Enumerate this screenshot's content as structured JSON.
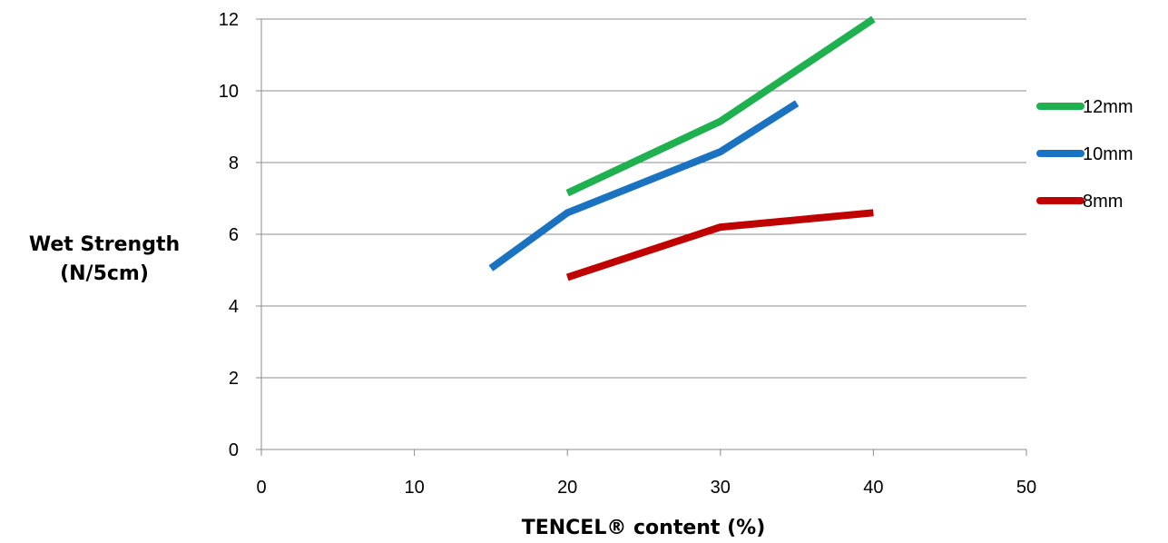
{
  "chart_data": {
    "type": "line",
    "title": "",
    "xlabel": "TENCEL® content (%)",
    "ylabel_lines": [
      "Wet Strength",
      "(N/5cm)"
    ],
    "xlim": [
      0,
      50
    ],
    "ylim": [
      0,
      12
    ],
    "xticks": [
      0,
      10,
      20,
      30,
      40,
      50
    ],
    "yticks": [
      0,
      2,
      4,
      6,
      8,
      10,
      12
    ],
    "grid": "horizontal",
    "legend_position": "right",
    "series": [
      {
        "name": "12mm",
        "color": "#1fb050",
        "points": [
          [
            20,
            7.15
          ],
          [
            30,
            9.15
          ],
          [
            40,
            12.0
          ]
        ]
      },
      {
        "name": "10mm",
        "color": "#1b72c0",
        "points": [
          [
            15,
            5.05
          ],
          [
            20,
            6.6
          ],
          [
            30,
            8.3
          ],
          [
            35,
            9.65
          ]
        ]
      },
      {
        "name": "8mm",
        "color": "#c00000",
        "points": [
          [
            20,
            4.8
          ],
          [
            30,
            6.2
          ],
          [
            40,
            6.6
          ]
        ]
      }
    ]
  }
}
